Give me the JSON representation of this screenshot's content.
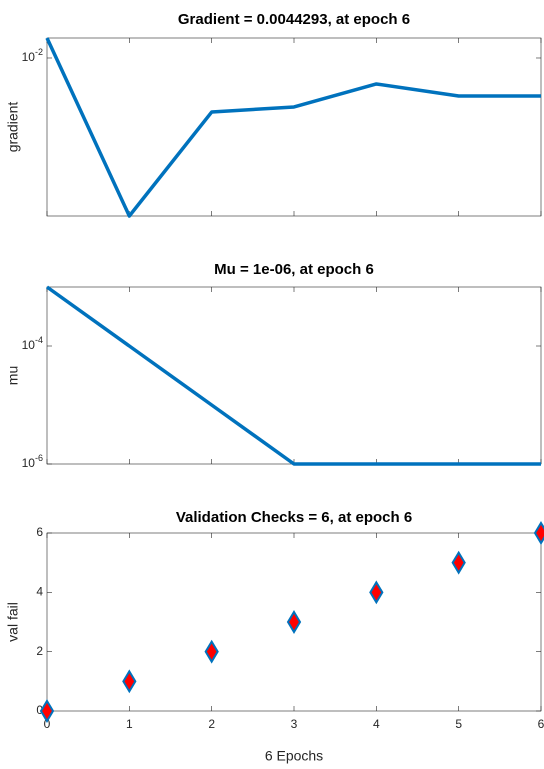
{
  "chart_data": [
    {
      "type": "line",
      "title": "Gradient = 0.0044293, at epoch 6",
      "ylabel": "gradient",
      "x": [
        0,
        1,
        2,
        3,
        4,
        5,
        6
      ],
      "values": [
        0.01535,
        0.000338,
        0.00314,
        0.0035,
        0.00573,
        0.00443,
        0.0044293
      ],
      "color": "#0072bd",
      "xlim": [
        0,
        6
      ],
      "xticks": [
        0,
        1,
        2,
        3,
        4,
        5,
        6
      ],
      "show_xtick_labels": false,
      "ylim": [
        0.000338,
        0.01535
      ],
      "yticks": [
        {
          "value": 0.01,
          "label": "10^-2"
        }
      ],
      "log_y": true
    },
    {
      "type": "line",
      "title": "Mu = 1e-06, at epoch 6",
      "ylabel": "mu",
      "x": [
        0,
        1,
        2,
        3,
        4,
        5,
        6
      ],
      "values": [
        0.001,
        0.0001,
        1e-05,
        1e-06,
        1e-06,
        1e-06,
        1e-06
      ],
      "color": "#0072bd",
      "xlim": [
        0,
        6
      ],
      "xticks": [
        0,
        1,
        2,
        3,
        4,
        5,
        6
      ],
      "show_xtick_labels": false,
      "ylim": [
        1e-06,
        0.001
      ],
      "yticks": [
        {
          "value": 0.0001,
          "label": "10^-4"
        },
        {
          "value": 1e-06,
          "label": "10^-6"
        }
      ],
      "log_y": true
    },
    {
      "type": "scatter",
      "title": "Validation Checks = 6, at epoch 6",
      "ylabel": "val fail",
      "xlabel": "6 Epochs",
      "x": [
        0,
        1,
        2,
        3,
        4,
        5,
        6
      ],
      "values": [
        0,
        1,
        2,
        3,
        4,
        5,
        6
      ],
      "color": "#0072bd",
      "marker_fill": "#ff0000",
      "xlim": [
        0,
        6
      ],
      "xticks": [
        0,
        1,
        2,
        3,
        4,
        5,
        6
      ],
      "show_xtick_labels": true,
      "ylim": [
        0,
        6
      ],
      "yticks": [
        0,
        2,
        4,
        6
      ],
      "log_y": false
    }
  ]
}
